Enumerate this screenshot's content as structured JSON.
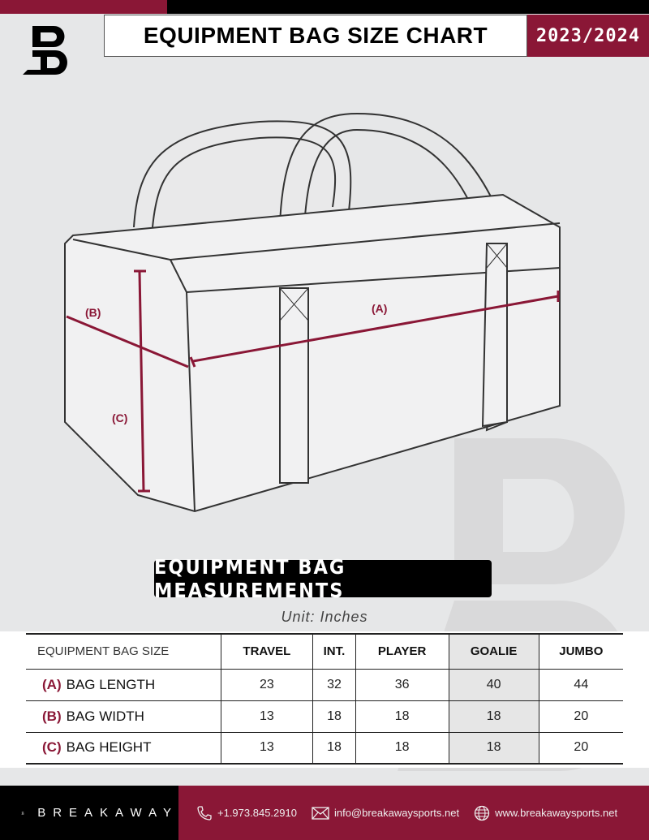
{
  "header": {
    "title": "EQUIPMENT BAG SIZE CHART",
    "season": "2023/2024",
    "logo_letter": "B"
  },
  "diagram": {
    "label_a": "(A)",
    "label_b": "(B)",
    "label_c": "(C)",
    "accent": "#8a1736"
  },
  "measurements": {
    "title": "EQUIPMENT BAG MEASUREMENTS",
    "unit": "Unit: Inches"
  },
  "table": {
    "header_label": "EQUIPMENT BAG SIZE",
    "columns": [
      "TRAVEL",
      "INT.",
      "PLAYER",
      "GOALIE",
      "JUMBO"
    ],
    "rows": [
      {
        "key": "(A)",
        "label": "BAG LENGTH",
        "values": [
          "23",
          "32",
          "36",
          "40",
          "44"
        ]
      },
      {
        "key": "(B)",
        "label": "BAG WIDTH",
        "values": [
          "13",
          "18",
          "18",
          "18",
          "20"
        ]
      },
      {
        "key": "(C)",
        "label": "BAG HEIGHT",
        "values": [
          "13",
          "18",
          "18",
          "18",
          "20"
        ]
      }
    ]
  },
  "footer": {
    "brand": "BREAKAWAY",
    "phone": "+1.973.845.2910",
    "email": "info@breakawaysports.net",
    "website": "www.breakawaysports.net"
  },
  "colors": {
    "brand_red": "#8a1736",
    "black": "#000000",
    "background": "#e6e7e8"
  }
}
